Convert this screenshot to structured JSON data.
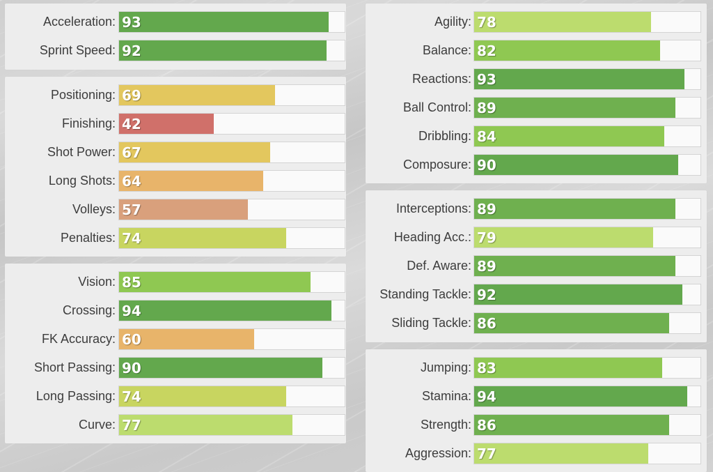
{
  "groups": [
    {
      "name": "group-pace",
      "stats": [
        {
          "label": "Acceleration:",
          "value": "93",
          "color": "#63a84d"
        },
        {
          "label": "Sprint Speed:",
          "value": "92",
          "color": "#63a84d"
        }
      ]
    },
    {
      "name": "group-shooting",
      "stats": [
        {
          "label": "Positioning:",
          "value": "69",
          "color": "#e3c75e"
        },
        {
          "label": "Finishing:",
          "value": "42",
          "color": "#d0706a"
        },
        {
          "label": "Shot Power:",
          "value": "67",
          "color": "#e3c75e"
        },
        {
          "label": "Long Shots:",
          "value": "64",
          "color": "#e8b46a"
        },
        {
          "label": "Volleys:",
          "value": "57",
          "color": "#d9a07c"
        },
        {
          "label": "Penalties:",
          "value": "74",
          "color": "#c8d560"
        }
      ]
    },
    {
      "name": "group-passing",
      "stats": [
        {
          "label": "Vision:",
          "value": "85",
          "color": "#8fc852"
        },
        {
          "label": "Crossing:",
          "value": "94",
          "color": "#63a84d"
        },
        {
          "label": "FK Accuracy:",
          "value": "60",
          "color": "#e8b46a"
        },
        {
          "label": "Short Passing:",
          "value": "90",
          "color": "#63a84d"
        },
        {
          "label": "Long Passing:",
          "value": "74",
          "color": "#c8d560"
        },
        {
          "label": "Curve:",
          "value": "77",
          "color": "#bcdc6e"
        }
      ]
    },
    {
      "name": "group-dribbling",
      "stats": [
        {
          "label": "Agility:",
          "value": "78",
          "color": "#bcdc6e"
        },
        {
          "label": "Balance:",
          "value": "82",
          "color": "#8fc852"
        },
        {
          "label": "Reactions:",
          "value": "93",
          "color": "#63a84d"
        },
        {
          "label": "Ball Control:",
          "value": "89",
          "color": "#6fb04f"
        },
        {
          "label": "Dribbling:",
          "value": "84",
          "color": "#8fc852"
        },
        {
          "label": "Composure:",
          "value": "90",
          "color": "#63a84d"
        }
      ]
    },
    {
      "name": "group-defending",
      "stats": [
        {
          "label": "Interceptions:",
          "value": "89",
          "color": "#6fb04f"
        },
        {
          "label": "Heading Acc.:",
          "value": "79",
          "color": "#bcdc6e"
        },
        {
          "label": "Def. Aware:",
          "value": "89",
          "color": "#6fb04f"
        },
        {
          "label": "Standing Tackle:",
          "value": "92",
          "color": "#63a84d"
        },
        {
          "label": "Sliding Tackle:",
          "value": "86",
          "color": "#6fb04f"
        }
      ]
    },
    {
      "name": "group-physical",
      "stats": [
        {
          "label": "Jumping:",
          "value": "83",
          "color": "#8fc852"
        },
        {
          "label": "Stamina:",
          "value": "94",
          "color": "#63a84d"
        },
        {
          "label": "Strength:",
          "value": "86",
          "color": "#6fb04f"
        },
        {
          "label": "Aggression:",
          "value": "77",
          "color": "#bcdc6e"
        }
      ]
    }
  ]
}
